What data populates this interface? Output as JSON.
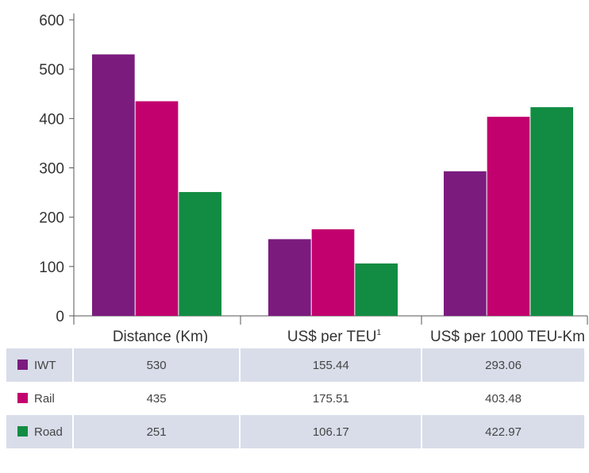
{
  "chart_data": {
    "type": "bar",
    "categories": [
      "Distance (Km)",
      "US$ per TEU",
      "US$ per 1000 TEU-Km"
    ],
    "category_superscripts": [
      "",
      "1",
      ""
    ],
    "series": [
      {
        "name": "IWT",
        "values": [
          530,
          155.44,
          293.06
        ],
        "color": "#7b1b7e"
      },
      {
        "name": "Rail",
        "values": [
          435,
          175.51,
          403.48
        ],
        "color": "#c2006e"
      },
      {
        "name": "Road",
        "values": [
          251,
          106.17,
          422.97
        ],
        "color": "#128c43"
      }
    ],
    "yticks": [
      0,
      100,
      200,
      300,
      400,
      500,
      600
    ],
    "ylim": [
      0,
      600
    ],
    "title": "",
    "xlabel": "",
    "ylabel": "",
    "grid": false,
    "legend": "table-below"
  },
  "table": {
    "rows": [
      {
        "label": "IWT",
        "values": [
          "530",
          "155.44",
          "293.06"
        ],
        "color": "#7b1b7e"
      },
      {
        "label": "Rail",
        "values": [
          "435",
          "175.51",
          "403.48"
        ],
        "color": "#c2006e"
      },
      {
        "label": "Road",
        "values": [
          "251",
          "106.17",
          "422.97"
        ],
        "color": "#128c43"
      }
    ]
  }
}
